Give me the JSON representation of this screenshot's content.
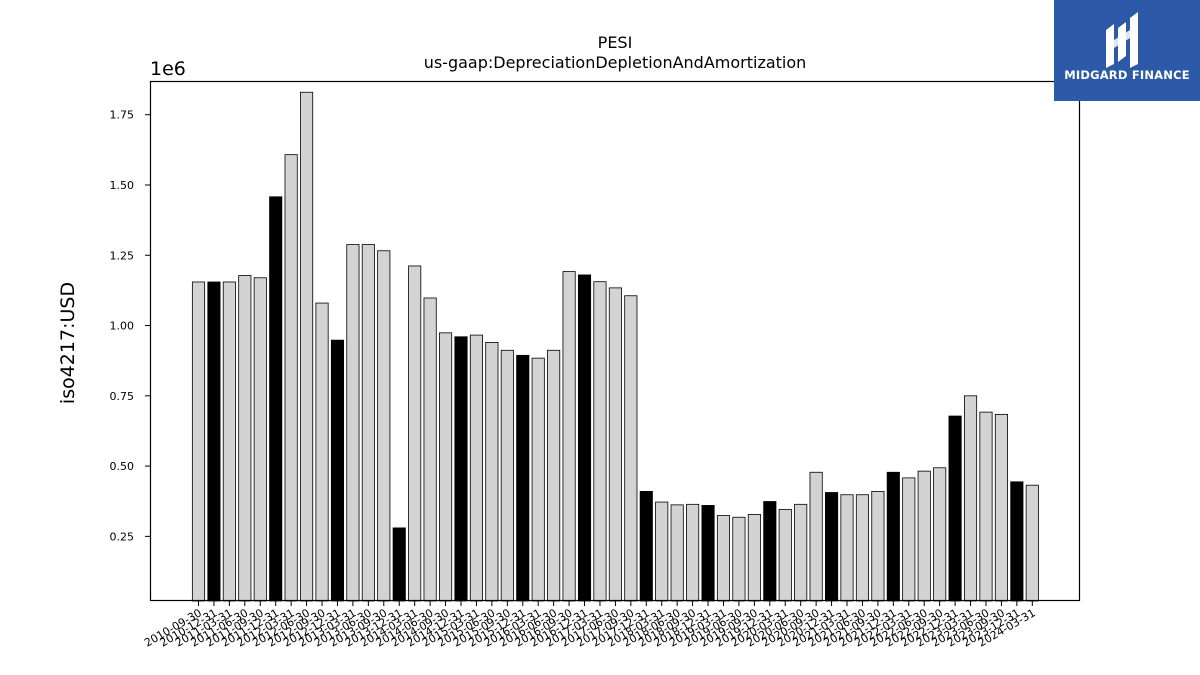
{
  "chart_data": {
    "type": "bar",
    "title": "PESI",
    "subtitle": "us-gaap:DepreciationDepletionAndAmortization",
    "ylabel": "iso4217:USD",
    "xlabel": "",
    "y_multiplier_label": "1e6",
    "ylim": [
      0.02,
      1.87
    ],
    "yticks": [
      0.25,
      0.5,
      0.75,
      1.0,
      1.25,
      1.5,
      1.75
    ],
    "ytick_labels": [
      "0.25",
      "0.50",
      "0.75",
      "1.00",
      "1.25",
      "1.50",
      "1.75"
    ],
    "grid": false,
    "legend": "none",
    "colors": {
      "quarter": "#d3d3d3",
      "fiscal_year_end": "#000000",
      "edge": "#000000"
    },
    "categories": [
      "2010-09-30",
      "2010-12-31",
      "2011-03-31",
      "2011-06-30",
      "2011-09-30",
      "2011-12-31",
      "2012-03-31",
      "2012-06-30",
      "2012-09-30",
      "2012-12-31",
      "2013-03-31",
      "2013-06-30",
      "2013-09-30",
      "2013-12-31",
      "2014-03-31",
      "2014-06-30",
      "2014-09-30",
      "2014-12-31",
      "2015-03-31",
      "2015-06-30",
      "2015-09-30",
      "2015-12-31",
      "2016-03-31",
      "2016-06-30",
      "2016-09-30",
      "2016-12-31",
      "2017-03-31",
      "2017-06-30",
      "2017-09-30",
      "2017-12-31",
      "2018-03-31",
      "2018-06-30",
      "2018-09-30",
      "2018-12-31",
      "2019-03-31",
      "2019-06-30",
      "2019-09-30",
      "2019-12-31",
      "2020-03-31",
      "2020-06-30",
      "2020-09-30",
      "2020-12-31",
      "2021-03-31",
      "2021-06-30",
      "2021-09-30",
      "2021-12-31",
      "2022-03-31",
      "2022-06-30",
      "2022-09-30",
      "2022-12-31",
      "2023-03-31",
      "2023-06-30",
      "2023-09-30",
      "2023-12-31",
      "2024-03-31"
    ],
    "values": [
      1.155,
      1.155,
      1.155,
      1.178,
      1.17,
      1.458,
      1.608,
      1.83,
      1.08,
      0.948,
      1.288,
      1.288,
      1.266,
      0.28,
      1.212,
      1.098,
      0.974,
      0.96,
      0.966,
      0.94,
      0.912,
      0.894,
      0.884,
      0.912,
      1.192,
      1.18,
      1.156,
      1.134,
      1.106,
      0.41,
      0.372,
      0.362,
      0.364,
      0.36,
      0.324,
      0.318,
      0.328,
      0.374,
      0.346,
      0.364,
      0.478,
      0.406,
      0.398,
      0.398,
      0.41,
      0.478,
      0.458,
      0.482,
      0.494,
      0.678,
      0.75,
      0.692,
      0.684,
      0.444,
      0.432
    ],
    "highlight": [
      false,
      true,
      false,
      false,
      false,
      true,
      false,
      false,
      false,
      true,
      false,
      false,
      false,
      true,
      false,
      false,
      false,
      true,
      false,
      false,
      false,
      true,
      false,
      false,
      false,
      true,
      false,
      false,
      false,
      true,
      false,
      false,
      false,
      true,
      false,
      false,
      false,
      true,
      false,
      false,
      false,
      true,
      false,
      false,
      false,
      true,
      false,
      false,
      false,
      true,
      false,
      false,
      false,
      true,
      false
    ]
  },
  "logo": {
    "brand_text": "MIDGARD FINANCE",
    "icon": "midgard-logo-icon"
  }
}
